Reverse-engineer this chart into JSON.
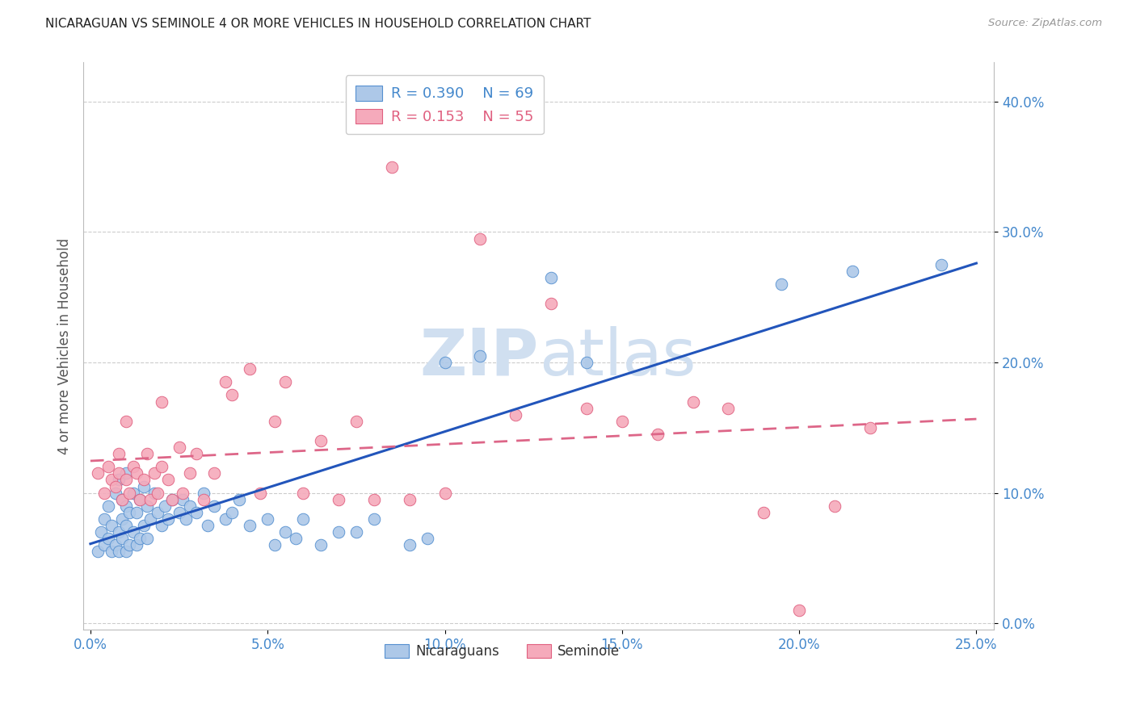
{
  "title": "NICARAGUAN VS SEMINOLE 4 OR MORE VEHICLES IN HOUSEHOLD CORRELATION CHART",
  "source": "Source: ZipAtlas.com",
  "xlabel_vals": [
    0.0,
    0.05,
    0.1,
    0.15,
    0.2,
    0.25
  ],
  "ylabel_vals": [
    0.0,
    0.1,
    0.2,
    0.3,
    0.4
  ],
  "xlim": [
    -0.002,
    0.255
  ],
  "ylim": [
    -0.005,
    0.43
  ],
  "legend_label1": "Nicaraguans",
  "legend_label2": "Seminole",
  "r1": "0.390",
  "n1": "69",
  "r2": "0.153",
  "n2": "55",
  "nic_fill": "#adc8e8",
  "nic_edge": "#5590d0",
  "sem_fill": "#f5aabb",
  "sem_edge": "#e06080",
  "line1_color": "#2255bb",
  "line2_color": "#dd6688",
  "watermark_color": "#d0dff0",
  "background_color": "#ffffff",
  "grid_color": "#cccccc",
  "axis_tick_color": "#4488cc",
  "title_color": "#222222",
  "ylabel_text": "4 or more Vehicles in Household",
  "nicaraguan_x": [
    0.002,
    0.003,
    0.004,
    0.004,
    0.005,
    0.005,
    0.006,
    0.006,
    0.007,
    0.007,
    0.008,
    0.008,
    0.008,
    0.009,
    0.009,
    0.009,
    0.01,
    0.01,
    0.01,
    0.01,
    0.011,
    0.011,
    0.012,
    0.012,
    0.013,
    0.013,
    0.014,
    0.014,
    0.015,
    0.015,
    0.016,
    0.016,
    0.017,
    0.018,
    0.019,
    0.02,
    0.021,
    0.022,
    0.023,
    0.025,
    0.026,
    0.027,
    0.028,
    0.03,
    0.032,
    0.033,
    0.035,
    0.038,
    0.04,
    0.042,
    0.045,
    0.05,
    0.052,
    0.055,
    0.058,
    0.06,
    0.065,
    0.07,
    0.075,
    0.08,
    0.09,
    0.095,
    0.1,
    0.11,
    0.13,
    0.14,
    0.195,
    0.215,
    0.24
  ],
  "nicaraguan_y": [
    0.055,
    0.07,
    0.06,
    0.08,
    0.065,
    0.09,
    0.055,
    0.075,
    0.06,
    0.1,
    0.055,
    0.07,
    0.11,
    0.065,
    0.08,
    0.095,
    0.055,
    0.075,
    0.09,
    0.115,
    0.06,
    0.085,
    0.07,
    0.1,
    0.06,
    0.085,
    0.065,
    0.095,
    0.075,
    0.105,
    0.065,
    0.09,
    0.08,
    0.1,
    0.085,
    0.075,
    0.09,
    0.08,
    0.095,
    0.085,
    0.095,
    0.08,
    0.09,
    0.085,
    0.1,
    0.075,
    0.09,
    0.08,
    0.085,
    0.095,
    0.075,
    0.08,
    0.06,
    0.07,
    0.065,
    0.08,
    0.06,
    0.07,
    0.07,
    0.08,
    0.06,
    0.065,
    0.2,
    0.205,
    0.265,
    0.2,
    0.26,
    0.27,
    0.275
  ],
  "seminole_x": [
    0.002,
    0.004,
    0.005,
    0.006,
    0.007,
    0.008,
    0.008,
    0.009,
    0.01,
    0.01,
    0.011,
    0.012,
    0.013,
    0.014,
    0.015,
    0.016,
    0.017,
    0.018,
    0.019,
    0.02,
    0.02,
    0.022,
    0.023,
    0.025,
    0.026,
    0.028,
    0.03,
    0.032,
    0.035,
    0.038,
    0.04,
    0.045,
    0.048,
    0.052,
    0.055,
    0.06,
    0.065,
    0.07,
    0.075,
    0.08,
    0.085,
    0.09,
    0.1,
    0.11,
    0.12,
    0.13,
    0.14,
    0.15,
    0.16,
    0.17,
    0.18,
    0.19,
    0.2,
    0.21,
    0.22
  ],
  "seminole_y": [
    0.115,
    0.1,
    0.12,
    0.11,
    0.105,
    0.115,
    0.13,
    0.095,
    0.11,
    0.155,
    0.1,
    0.12,
    0.115,
    0.095,
    0.11,
    0.13,
    0.095,
    0.115,
    0.1,
    0.12,
    0.17,
    0.11,
    0.095,
    0.135,
    0.1,
    0.115,
    0.13,
    0.095,
    0.115,
    0.185,
    0.175,
    0.195,
    0.1,
    0.155,
    0.185,
    0.1,
    0.14,
    0.095,
    0.155,
    0.095,
    0.35,
    0.095,
    0.1,
    0.295,
    0.16,
    0.245,
    0.165,
    0.155,
    0.145,
    0.17,
    0.165,
    0.085,
    0.01,
    0.09,
    0.15
  ]
}
